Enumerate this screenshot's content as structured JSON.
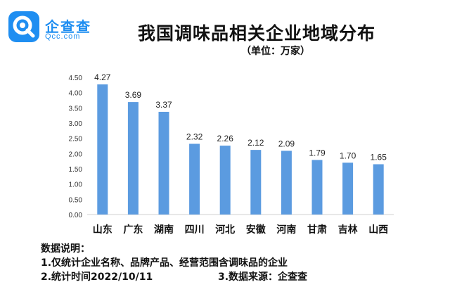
{
  "brand": {
    "name": "企查查",
    "domain": "Qcc.com",
    "logo_icon": "qcc-magnifier-logo-icon",
    "color": "#1f8ef1"
  },
  "chart_data": {
    "type": "bar",
    "title": "我国调味品相关企业地域分布",
    "subtitle": "（单位：万家）",
    "categories": [
      "山东",
      "广东",
      "湖南",
      "四川",
      "河北",
      "安徽",
      "河南",
      "甘肃",
      "吉林",
      "山西"
    ],
    "values": [
      4.27,
      3.69,
      3.37,
      2.32,
      2.26,
      2.12,
      2.09,
      1.79,
      1.7,
      1.65
    ],
    "value_labels": [
      "4.27",
      "3.69",
      "3.37",
      "2.32",
      "2.26",
      "2.12",
      "2.09",
      "1.79",
      "1.70",
      "1.65"
    ],
    "yticks": [
      "0.00",
      "0.50",
      "1.00",
      "1.50",
      "2.00",
      "2.50",
      "3.00",
      "3.50",
      "4.00",
      "4.50"
    ],
    "ylim": [
      0,
      4.5
    ],
    "xlabel": "",
    "ylabel": "",
    "bar_color": "#5b9be0",
    "grid": false
  },
  "notes": {
    "heading": "数据说明：",
    "line1": "1.仅统计企业名称、品牌产品、经营范围含调味品的企业",
    "line2": "2.统计时间2022/10/11",
    "line3": "3.数据来源：企查查"
  }
}
